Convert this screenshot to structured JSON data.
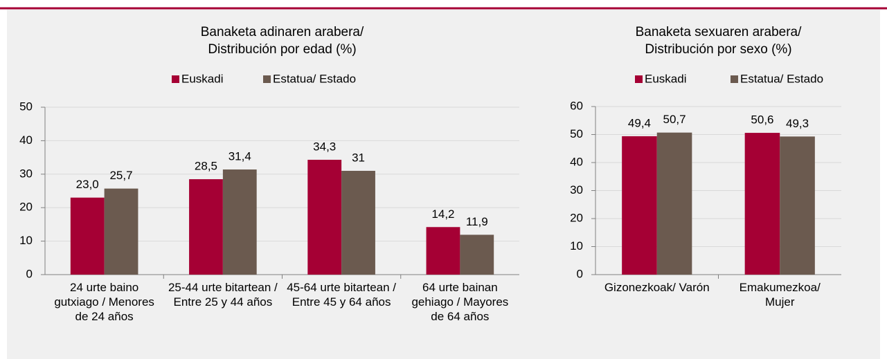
{
  "chart_data": [
    {
      "type": "bar",
      "title": "Banaketa adinaren arabera/",
      "subtitle": "Distribución por edad (%)",
      "categories": [
        "24 urte baino gutxiago / Menores de 24 años",
        "25-44 urte bitartean /  Entre 25 y 44 años",
        "45-64 urte bitartean / Entre 45 y 64 años",
        "64 urte bainan gehiago / Mayores de 64 años"
      ],
      "series": [
        {
          "name": "Euskadi",
          "color": "#a50034",
          "values": [
            23.0,
            28.5,
            34.3,
            14.2
          ],
          "value_labels": [
            "23,0",
            "28,5",
            "34,3",
            "14,2"
          ]
        },
        {
          "name": "Estatua/ Estado",
          "color": "#6b5a4f",
          "values": [
            25.7,
            31.4,
            31,
            11.9
          ],
          "value_labels": [
            "25,7",
            "31,4",
            "31",
            "11,9"
          ]
        }
      ],
      "ylim": [
        0,
        50
      ],
      "yticks": [
        0,
        10,
        20,
        30,
        40,
        50
      ],
      "grid": true,
      "legend": "top"
    },
    {
      "type": "bar",
      "title": "Banaketa sexuaren arabera/",
      "subtitle": "Distribución por sexo (%)",
      "categories": [
        "Gizonezkoak/ Varón",
        "Emakumezkoa/ Mujer"
      ],
      "series": [
        {
          "name": "Euskadi",
          "color": "#a50034",
          "values": [
            49.4,
            50.6
          ],
          "value_labels": [
            "49,4",
            "50,6"
          ]
        },
        {
          "name": "Estatua/ Estado",
          "color": "#6b5a4f",
          "values": [
            50.7,
            49.3
          ],
          "value_labels": [
            "50,7",
            "49,3"
          ]
        }
      ],
      "ylim": [
        0,
        60
      ],
      "yticks": [
        0,
        10,
        20,
        30,
        40,
        50,
        60
      ],
      "grid": true,
      "legend": "top"
    }
  ]
}
